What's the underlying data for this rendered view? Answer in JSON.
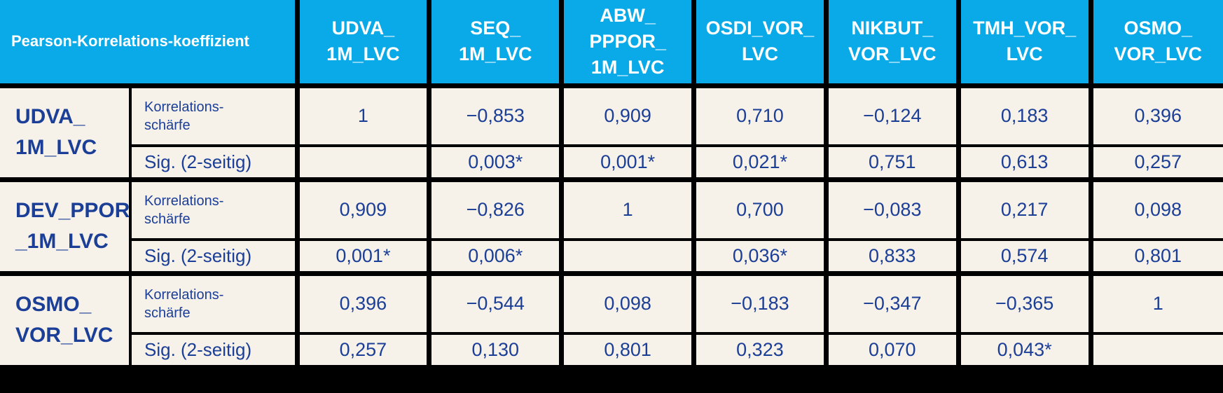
{
  "colors": {
    "header_bg": "#0aa9e8",
    "header_text": "#ffffff",
    "cell_bg": "#f7f2e9",
    "text_blue": "#1b3e97",
    "border": "#000000"
  },
  "table": {
    "corner_label": "Pearson-Korrelations-koeffizient",
    "columns": [
      {
        "id": "udva-1m-lvc",
        "lines": [
          "UDVA_",
          "1M_LVC"
        ]
      },
      {
        "id": "seq-1m-lvc",
        "lines": [
          "SEQ_",
          "1M_LVC"
        ]
      },
      {
        "id": "abw-pppor-1m-lvc",
        "lines": [
          "ABW_",
          "PPPOR_",
          "1M_LVC"
        ]
      },
      {
        "id": "osdi-vor-lvc",
        "lines": [
          "OSDI_VOR_",
          "LVC"
        ]
      },
      {
        "id": "nikbut-vor-lvc",
        "lines": [
          "NIKBUT_",
          "VOR_LVC"
        ]
      },
      {
        "id": "tmh-vor-lvc",
        "lines": [
          "TMH_VOR_",
          "LVC"
        ]
      },
      {
        "id": "osmo-vor-lvc",
        "lines": [
          "OSMO_",
          "VOR_LVC"
        ]
      }
    ],
    "row_labels": {
      "correlation_lines": [
        "Korrelations-",
        "schärfe"
      ],
      "significance": "Sig. (2-seitig)"
    },
    "groups": [
      {
        "id": "udva-1m-lvc",
        "label_lines": [
          "UDVA_",
          "1M_LVC"
        ],
        "correlation": [
          "1",
          "−0,853",
          "0,909",
          "0,710",
          "−0,124",
          "0,183",
          "0,396"
        ],
        "significance": [
          "",
          "0,003*",
          "0,001*",
          "0,021*",
          "0,751",
          "0,613",
          "0,257"
        ]
      },
      {
        "id": "dev-ppor-1m-lvc",
        "label_lines": [
          "DEV_PPOR",
          "_1M_LVC"
        ],
        "correlation": [
          "0,909",
          "−0,826",
          "1",
          "0,700",
          "−0,083",
          "0,217",
          "0,098"
        ],
        "significance": [
          "0,001*",
          "0,006*",
          "",
          "0,036*",
          "0,833",
          "0,574",
          "0,801"
        ]
      },
      {
        "id": "osmo-vor-lvc",
        "label_lines": [
          "OSMO_",
          "VOR_LVC"
        ],
        "correlation": [
          "0,396",
          "−0,544",
          "0,098",
          "−0,183",
          "−0,347",
          "−0,365",
          "1"
        ],
        "significance": [
          "0,257",
          "0,130",
          "0,801",
          "0,323",
          "0,070",
          "0,043*",
          ""
        ]
      }
    ]
  }
}
